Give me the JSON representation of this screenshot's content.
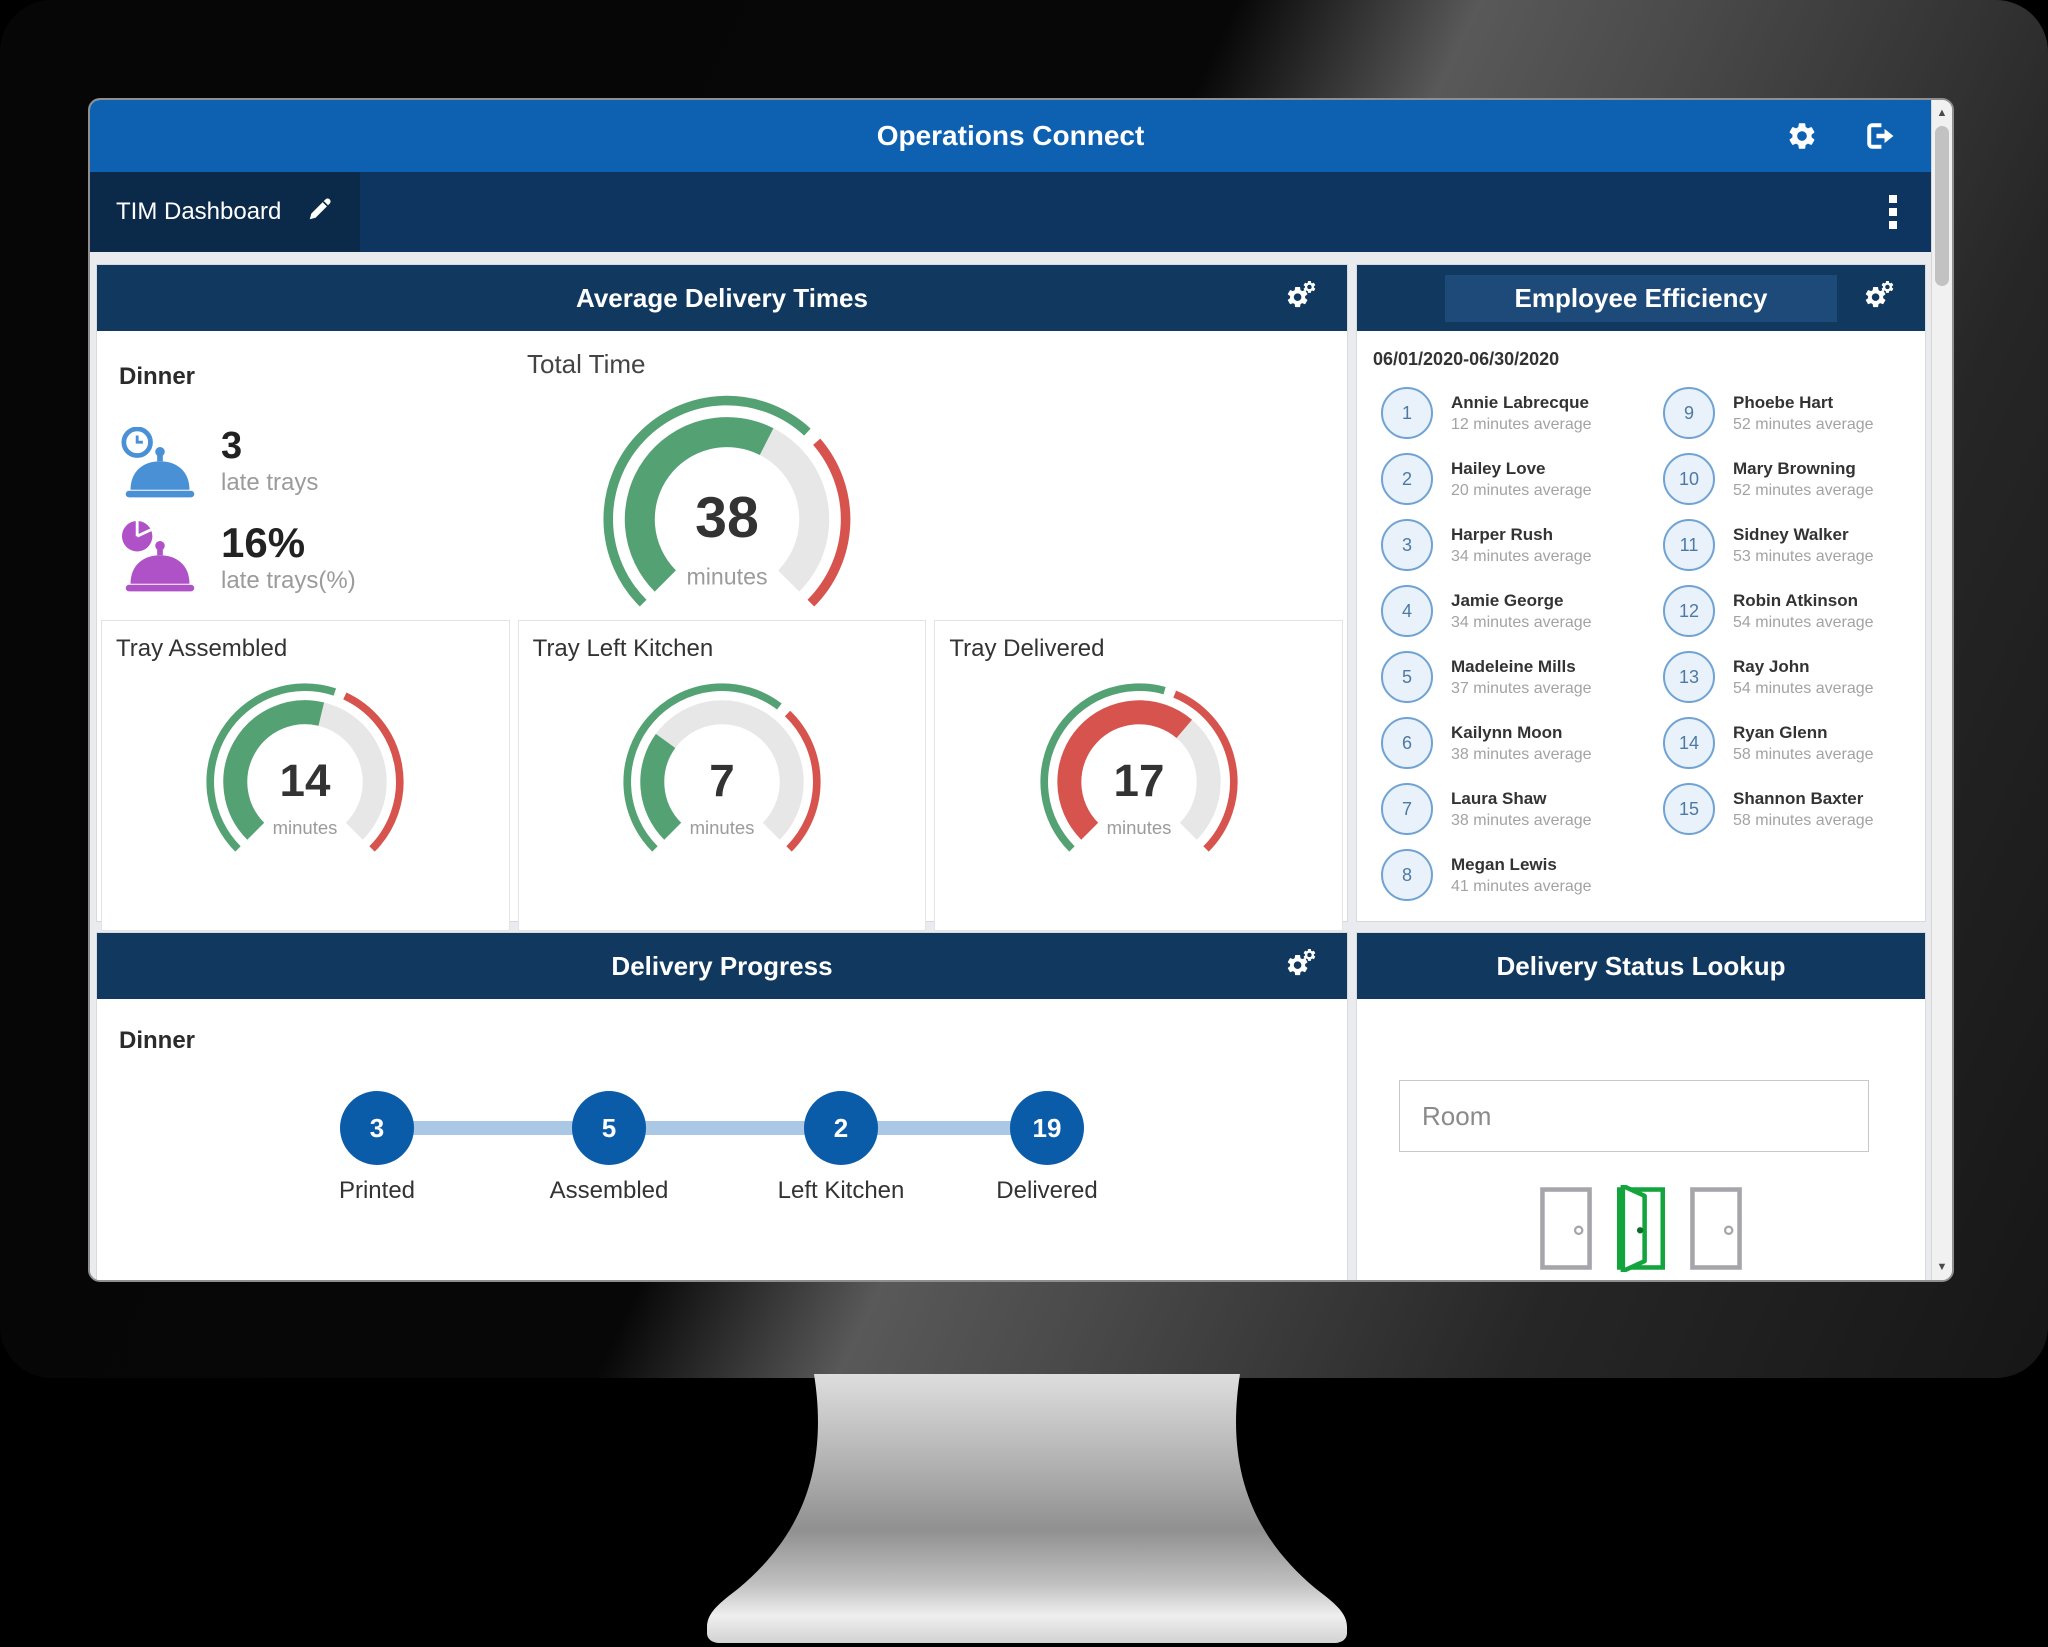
{
  "app": {
    "title": "Operations Connect",
    "tab_label": "TIM Dashboard"
  },
  "colors": {
    "header_blue": "#0e60b0",
    "tabbar_navy": "#0d3560",
    "panel_header_navy": "#11395f",
    "gauge_green": "#54a273",
    "gauge_red": "#d7534e",
    "gauge_track_gray": "#e7e7e7",
    "progress_circle_blue": "#0b5ca8",
    "progress_connector_blue": "#aac7e3",
    "kpi_blue": "#4a90d5",
    "kpi_purple": "#b052c7",
    "door_green": "#13a43d",
    "door_gray": "#a5a5ab"
  },
  "icons": {
    "header": [
      "gear-icon",
      "sign-out-icon"
    ],
    "tab": "pencil-icon",
    "tabbar_menu": "kebab-menu-icon",
    "panel_settings": "cogs-icon",
    "kpi": [
      "cloche-clock-icon",
      "cloche-pie-icon"
    ],
    "doors": [
      "door-closed-icon",
      "door-open-icon",
      "door-closed-icon"
    ]
  },
  "panels": {
    "avg_delivery": {
      "title": "Average Delivery Times",
      "meal": "Dinner",
      "total_time_label": "Total Time",
      "kpis": [
        {
          "value": "3",
          "label": "late trays"
        },
        {
          "value": "16%",
          "label": "late trays(%)"
        }
      ]
    },
    "employee_efficiency": {
      "title": "Employee Efficiency",
      "date_range": "06/01/2020-06/30/2020",
      "employees": [
        {
          "rank": "1",
          "name": "Annie Labrecque",
          "detail": "12 minutes average"
        },
        {
          "rank": "2",
          "name": "Hailey Love",
          "detail": "20 minutes average"
        },
        {
          "rank": "3",
          "name": "Harper Rush",
          "detail": "34 minutes average"
        },
        {
          "rank": "4",
          "name": "Jamie George",
          "detail": "34 minutes average"
        },
        {
          "rank": "5",
          "name": "Madeleine Mills",
          "detail": "37 minutes average"
        },
        {
          "rank": "6",
          "name": "Kailynn Moon",
          "detail": "38 minutes average"
        },
        {
          "rank": "7",
          "name": "Laura Shaw",
          "detail": "38 minutes average"
        },
        {
          "rank": "8",
          "name": "Megan Lewis",
          "detail": "41 minutes average"
        },
        {
          "rank": "9",
          "name": "Phoebe Hart",
          "detail": "52 minutes average"
        },
        {
          "rank": "10",
          "name": "Mary Browning",
          "detail": "52 minutes average"
        },
        {
          "rank": "11",
          "name": "Sidney Walker",
          "detail": "53 minutes average"
        },
        {
          "rank": "12",
          "name": "Robin Atkinson",
          "detail": "54 minutes average"
        },
        {
          "rank": "13",
          "name": "Ray John",
          "detail": "54 minutes average"
        },
        {
          "rank": "14",
          "name": "Ryan Glenn",
          "detail": "58 minutes average"
        },
        {
          "rank": "15",
          "name": "Shannon Baxter",
          "detail": "58 minutes average"
        }
      ]
    },
    "delivery_progress": {
      "title": "Delivery Progress",
      "meal": "Dinner",
      "steps": [
        {
          "count": "3",
          "label": "Printed"
        },
        {
          "count": "5",
          "label": "Assembled"
        },
        {
          "count": "2",
          "label": "Left Kitchen"
        },
        {
          "count": "19",
          "label": "Delivered"
        }
      ]
    },
    "delivery_status": {
      "title": "Delivery Status Lookup",
      "room_placeholder": "Room",
      "doors": [
        "closed",
        "open",
        "closed"
      ]
    }
  },
  "chart_data": [
    {
      "type": "gauge",
      "title": "Total Time",
      "value": 38,
      "unit": "minutes",
      "fill_fraction": 0.6,
      "threshold_fraction": 0.67,
      "fill_color": "#54a273"
    },
    {
      "type": "gauge",
      "title": "Tray Assembled",
      "value": 14,
      "unit": "minutes",
      "fill_fraction": 0.55,
      "threshold_fraction": 0.58,
      "fill_color": "#54a273"
    },
    {
      "type": "gauge",
      "title": "Tray Left Kitchen",
      "value": 7,
      "unit": "minutes",
      "fill_fraction": 0.3,
      "threshold_fraction": 0.65,
      "fill_color": "#54a273"
    },
    {
      "type": "gauge",
      "title": "Tray Delivered",
      "value": 17,
      "unit": "minutes",
      "fill_fraction": 0.65,
      "threshold_fraction": 0.57,
      "fill_color": "#d7534e"
    }
  ]
}
